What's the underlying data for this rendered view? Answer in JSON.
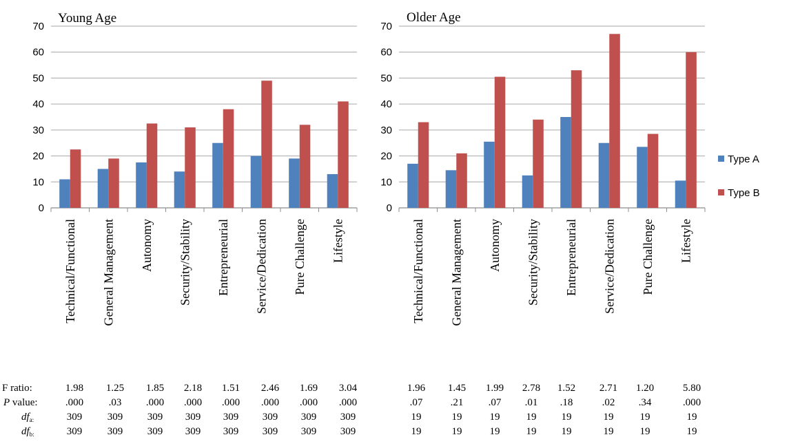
{
  "legend": [
    {
      "label": "Type A",
      "color": "#4f81bd"
    },
    {
      "label": "Type B",
      "color": "#c0504d"
    }
  ],
  "stats_row_labels": {
    "f_ratio": "F ratio:",
    "p_value": "P value:",
    "df_a": "df",
    "df_a_sub": "a:",
    "df_b": "df",
    "df_b_sub": "b:"
  },
  "chart_data": [
    {
      "type": "bar",
      "title": "Young Age",
      "categories": [
        "Technical/Functional",
        "General Management",
        "Autonomy",
        "Security/Stability",
        "Entrepreneurial",
        "Service/Dedication",
        "Pure Challenge",
        "Lifestyle"
      ],
      "series": [
        {
          "name": "Type A",
          "values": [
            11,
            15,
            17.5,
            14,
            25,
            20,
            19,
            13
          ]
        },
        {
          "name": "Type B",
          "values": [
            22.5,
            19,
            32.5,
            31,
            38,
            49,
            32,
            41
          ]
        }
      ],
      "ylim": [
        0,
        70
      ],
      "yticks": [
        "0",
        "10",
        "20",
        "30",
        "40",
        "50",
        "60",
        "70"
      ],
      "grid": true,
      "legend_position": "right",
      "stats": {
        "f_ratio": [
          "1.98",
          "1.25",
          "1.85",
          "2.18",
          "1.51",
          "2.46",
          "1.69",
          "3.04"
        ],
        "p_value": [
          ".000",
          ".03",
          ".000",
          ".000",
          ".000",
          ".000",
          ".000",
          ".000"
        ],
        "df_a": [
          "309",
          "309",
          "309",
          "309",
          "309",
          "309",
          "309",
          "309"
        ],
        "df_b": [
          "309",
          "309",
          "309",
          "309",
          "309",
          "309",
          "309",
          "309"
        ]
      }
    },
    {
      "type": "bar",
      "title": "Older Age",
      "categories": [
        "Technical/Functional",
        "General Management",
        "Autonomy",
        "Security/Stability",
        "Entrepreneurial",
        "Service/Dedication",
        "Pure Challenge",
        "Lifestyle"
      ],
      "series": [
        {
          "name": "Type A",
          "values": [
            17,
            14.5,
            25.5,
            12.5,
            35,
            25,
            23.5,
            10.5
          ]
        },
        {
          "name": "Type B",
          "values": [
            33,
            21,
            50.5,
            34,
            53,
            67,
            28.5,
            60
          ]
        }
      ],
      "ylim": [
        0,
        70
      ],
      "yticks": [
        "0",
        "10",
        "20",
        "30",
        "40",
        "50",
        "60",
        "70"
      ],
      "grid": true,
      "legend_position": "right",
      "stats": {
        "f_ratio": [
          "1.96",
          "1.45",
          "1.99",
          "2.78",
          "1.52",
          "2.71",
          "1.20",
          "5.80"
        ],
        "p_value": [
          ".07",
          ".21",
          ".07",
          ".01",
          ".18",
          ".02",
          ".34",
          ".000"
        ],
        "df_a": [
          "19",
          "19",
          "19",
          "19",
          "19",
          "19",
          "19",
          "19"
        ],
        "df_b": [
          "19",
          "19",
          "19",
          "19",
          "19",
          "19",
          "19",
          "19"
        ]
      }
    }
  ]
}
